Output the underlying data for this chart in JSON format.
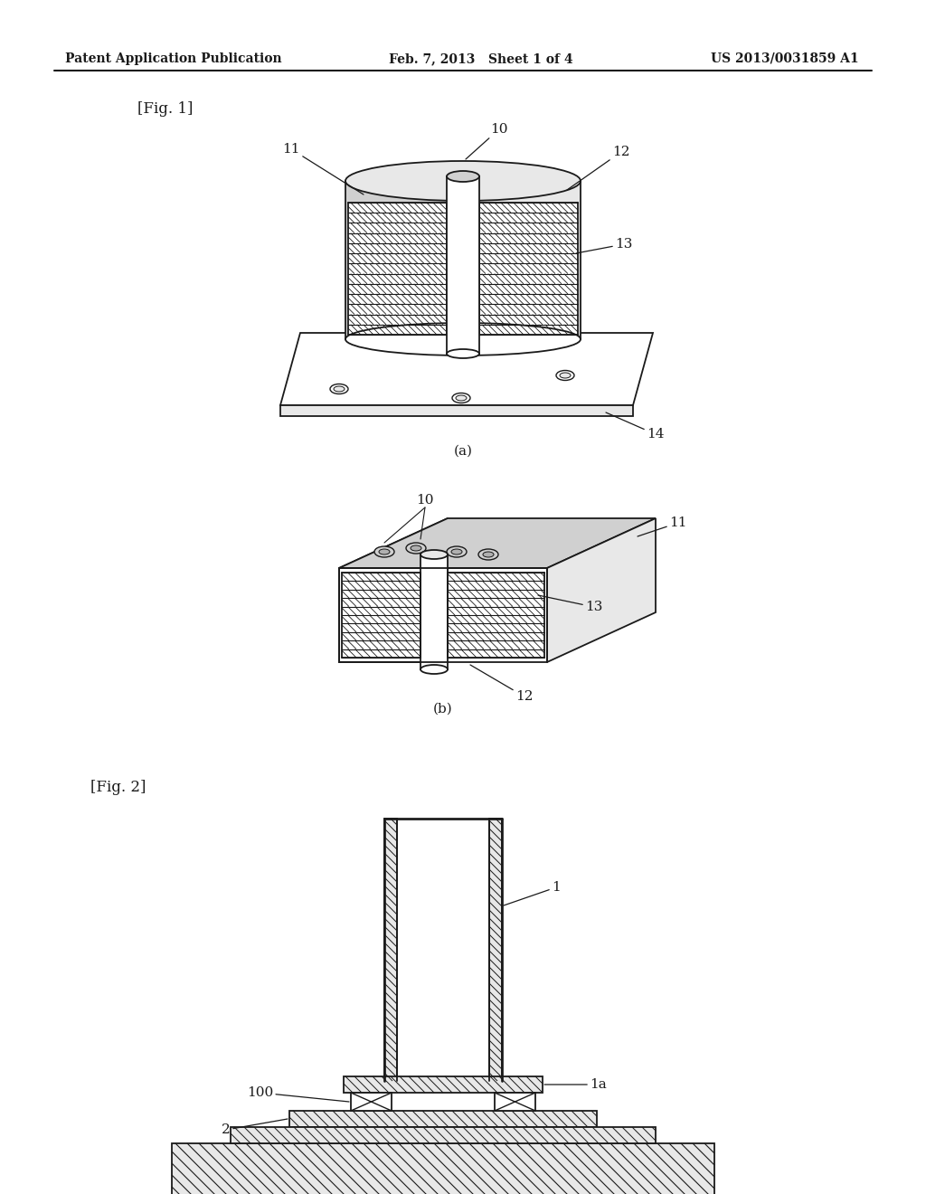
{
  "header_left": "Patent Application Publication",
  "header_mid": "Feb. 7, 2013   Sheet 1 of 4",
  "header_right": "US 2013/0031859 A1",
  "fig1_label": "[Fig. 1]",
  "fig2_label": "[Fig. 2]",
  "caption_a": "(a)",
  "caption_b": "(b)",
  "bg_color": "#ffffff",
  "line_color": "#1a1a1a",
  "label_10": "10",
  "label_11": "11",
  "label_12": "12",
  "label_13": "13",
  "label_14": "14",
  "label_1": "1",
  "label_1a": "1a",
  "label_100": "100",
  "label_2": "2",
  "gray_light": "#e8e8e8",
  "gray_mid": "#d0d0d0",
  "gray_dark": "#b0b0b0"
}
